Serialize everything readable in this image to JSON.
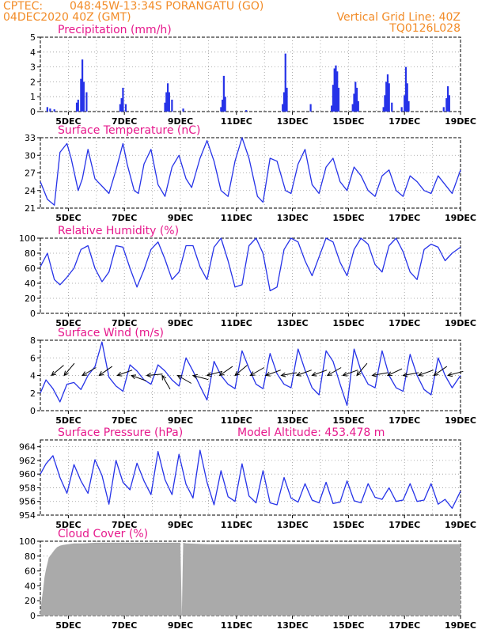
{
  "header": {
    "agency": "CPTEC:",
    "location": "048:45W-13:34S   PORANGATU (GO)",
    "run": "04DEC2020 40Z (GMT)",
    "grid_note": "Vertical Grid Line: 40Z",
    "code": "TQ0126L028"
  },
  "chart_data": [
    {
      "id": "precip",
      "type": "bar",
      "title": "Precipitation  (mm/h)",
      "ylim": [
        0,
        5
      ],
      "yticks": [
        0,
        1,
        2,
        3,
        4,
        5
      ],
      "xlim": [
        0,
        15
      ],
      "color": "#2633e8",
      "x_labels": [
        "5DEC",
        "7DEC",
        "9DEC",
        "11DEC",
        "13DEC",
        "15DEC",
        "17DEC",
        "19DEC"
      ],
      "values": [
        [
          0.25,
          0.3
        ],
        [
          0.35,
          0.2
        ],
        [
          0.5,
          0.15
        ],
        [
          1.3,
          0.6
        ],
        [
          1.35,
          0.8
        ],
        [
          1.45,
          2.2
        ],
        [
          1.5,
          3.5
        ],
        [
          1.55,
          2.0
        ],
        [
          1.65,
          1.3
        ],
        [
          2.85,
          0.5
        ],
        [
          2.9,
          0.9
        ],
        [
          2.95,
          1.6
        ],
        [
          3.05,
          0.5
        ],
        [
          4.45,
          0.6
        ],
        [
          4.5,
          1.3
        ],
        [
          4.55,
          1.9
        ],
        [
          4.6,
          1.3
        ],
        [
          4.7,
          0.8
        ],
        [
          5.1,
          0.2
        ],
        [
          6.45,
          0.3
        ],
        [
          6.5,
          0.8
        ],
        [
          6.55,
          2.4
        ],
        [
          6.6,
          1.0
        ],
        [
          7.35,
          0.1
        ],
        [
          8.65,
          0.5
        ],
        [
          8.7,
          1.3
        ],
        [
          8.75,
          3.9
        ],
        [
          8.8,
          1.6
        ],
        [
          9.65,
          0.5
        ],
        [
          10.4,
          0.4
        ],
        [
          10.45,
          1.8
        ],
        [
          10.5,
          2.9
        ],
        [
          10.55,
          3.1
        ],
        [
          10.6,
          2.7
        ],
        [
          10.65,
          1.6
        ],
        [
          11.15,
          0.5
        ],
        [
          11.2,
          1.2
        ],
        [
          11.25,
          2.0
        ],
        [
          11.3,
          1.6
        ],
        [
          11.35,
          0.7
        ],
        [
          12.25,
          0.3
        ],
        [
          12.3,
          1.1
        ],
        [
          12.35,
          2.0
        ],
        [
          12.4,
          2.5
        ],
        [
          12.45,
          1.9
        ],
        [
          12.55,
          0.6
        ],
        [
          12.9,
          0.3
        ],
        [
          13.0,
          1.1
        ],
        [
          13.05,
          3.0
        ],
        [
          13.1,
          1.9
        ],
        [
          13.15,
          0.7
        ],
        [
          14.4,
          0.3
        ],
        [
          14.5,
          0.9
        ],
        [
          14.55,
          1.7
        ],
        [
          14.6,
          1.1
        ]
      ]
    },
    {
      "id": "temp",
      "type": "line",
      "title": "Surface Temperature (nC)",
      "ylim": [
        21,
        33
      ],
      "yticks": [
        21,
        24,
        27,
        30,
        33
      ],
      "xlim": [
        0,
        15
      ],
      "color": "#2633e8",
      "x_labels": [
        "5DEC",
        "7DEC",
        "9DEC",
        "11DEC",
        "13DEC",
        "15DEC",
        "17DEC",
        "19DEC"
      ],
      "x": [
        0,
        0.25,
        0.5,
        0.7,
        0.95,
        1.1,
        1.35,
        1.5,
        1.7,
        1.95,
        2.25,
        2.45,
        2.7,
        2.95,
        3.1,
        3.35,
        3.5,
        3.7,
        3.95,
        4.2,
        4.45,
        4.7,
        4.95,
        5.2,
        5.4,
        5.7,
        5.95,
        6.2,
        6.45,
        6.7,
        6.95,
        7.2,
        7.45,
        7.75,
        7.95,
        8.2,
        8.45,
        8.75,
        8.95,
        9.2,
        9.45,
        9.7,
        9.95,
        10.2,
        10.45,
        10.7,
        10.95,
        11.2,
        11.45,
        11.7,
        11.95,
        12.2,
        12.45,
        12.7,
        12.95,
        13.2,
        13.45,
        13.7,
        13.95,
        14.2,
        14.45,
        14.7,
        15
      ],
      "values": [
        25.5,
        22.5,
        21.5,
        30.5,
        32.0,
        29.5,
        24.0,
        26.0,
        31.0,
        26.0,
        24.5,
        23.5,
        27.5,
        32.0,
        28.5,
        24.0,
        23.5,
        28.5,
        31.0,
        25.0,
        23.0,
        28.0,
        30.0,
        26.0,
        24.5,
        29.5,
        32.5,
        29.0,
        24.0,
        23.0,
        29.0,
        33.0,
        29.5,
        23.0,
        22.0,
        29.5,
        29.0,
        24.0,
        23.5,
        28.5,
        31.0,
        25.0,
        23.5,
        28.0,
        29.5,
        25.5,
        24.0,
        28.0,
        26.5,
        24.0,
        23.0,
        26.5,
        27.5,
        24.0,
        23.0,
        26.5,
        25.5,
        24.0,
        23.5,
        26.5,
        25.0,
        23.5,
        27.5
      ]
    },
    {
      "id": "rh",
      "type": "line",
      "title": "Relative Humidity  (%)",
      "ylim": [
        0,
        100
      ],
      "yticks": [
        0,
        20,
        40,
        60,
        80,
        100
      ],
      "xlim": [
        0,
        15
      ],
      "color": "#2633e8",
      "x_labels": [
        "5DEC",
        "7DEC",
        "9DEC",
        "11DEC",
        "13DEC",
        "15DEC",
        "17DEC",
        "19DEC"
      ],
      "x": [
        0,
        0.25,
        0.5,
        0.7,
        0.95,
        1.2,
        1.45,
        1.7,
        1.95,
        2.2,
        2.45,
        2.7,
        2.95,
        3.2,
        3.45,
        3.7,
        3.95,
        4.2,
        4.45,
        4.7,
        4.95,
        5.2,
        5.45,
        5.7,
        5.95,
        6.2,
        6.45,
        6.7,
        6.95,
        7.2,
        7.45,
        7.7,
        7.95,
        8.2,
        8.45,
        8.7,
        8.95,
        9.2,
        9.45,
        9.7,
        9.95,
        10.2,
        10.45,
        10.7,
        10.95,
        11.2,
        11.45,
        11.7,
        11.95,
        12.2,
        12.45,
        12.7,
        12.95,
        13.2,
        13.45,
        13.7,
        13.95,
        14.2,
        14.45,
        14.7,
        15
      ],
      "values": [
        62,
        80,
        45,
        38,
        48,
        60,
        85,
        90,
        60,
        42,
        55,
        90,
        88,
        60,
        35,
        58,
        85,
        95,
        72,
        45,
        55,
        90,
        90,
        62,
        45,
        88,
        100,
        70,
        35,
        38,
        90,
        100,
        80,
        30,
        35,
        85,
        100,
        95,
        70,
        50,
        75,
        100,
        95,
        68,
        50,
        85,
        100,
        92,
        65,
        55,
        90,
        100,
        82,
        55,
        45,
        85,
        92,
        88,
        70,
        80,
        88
      ]
    },
    {
      "id": "wind",
      "type": "line",
      "title": "Surface Wind  (m/s)",
      "ylim": [
        0,
        8
      ],
      "yticks": [
        0,
        2,
        4,
        6,
        8
      ],
      "xlim": [
        0,
        15
      ],
      "color": "#2633e8",
      "x_labels": [
        "5DEC",
        "7DEC",
        "9DEC",
        "11DEC",
        "13DEC",
        "15DEC",
        "17DEC",
        "19DEC"
      ],
      "x": [
        0,
        0.2,
        0.45,
        0.7,
        0.95,
        1.2,
        1.45,
        1.7,
        1.95,
        2.2,
        2.45,
        2.7,
        2.95,
        3.2,
        3.45,
        3.7,
        3.95,
        4.2,
        4.45,
        4.7,
        4.95,
        5.2,
        5.45,
        5.7,
        5.95,
        6.2,
        6.45,
        6.7,
        6.95,
        7.2,
        7.45,
        7.7,
        7.95,
        8.2,
        8.45,
        8.7,
        8.95,
        9.2,
        9.45,
        9.7,
        9.95,
        10.2,
        10.45,
        10.7,
        10.95,
        11.2,
        11.45,
        11.7,
        11.95,
        12.2,
        12.45,
        12.7,
        12.95,
        13.2,
        13.45,
        13.7,
        13.95,
        14.2,
        14.45,
        14.7,
        15
      ],
      "values": [
        2.0,
        3.5,
        2.5,
        1.0,
        3.0,
        3.2,
        2.4,
        4.0,
        5.0,
        7.8,
        3.8,
        2.8,
        2.2,
        5.2,
        4.5,
        3.5,
        3.0,
        5.2,
        4.5,
        3.5,
        2.8,
        6.0,
        4.5,
        2.8,
        1.2,
        5.6,
        4.0,
        3.0,
        2.5,
        6.8,
        4.8,
        3.0,
        2.5,
        6.5,
        4.2,
        3.0,
        2.6,
        7.0,
        4.6,
        2.6,
        1.8,
        6.8,
        5.6,
        3.0,
        0.6,
        7.0,
        4.5,
        3.0,
        2.6,
        6.8,
        4.0,
        2.6,
        2.2,
        6.4,
        4.0,
        2.4,
        1.8,
        6.0,
        4.0,
        2.6,
        4.0
      ],
      "arrows_x": [
        0.4,
        0.85,
        1.5,
        2.1,
        2.75,
        3.25,
        3.8,
        4.35,
        4.9,
        5.45,
        5.95,
        6.4,
        6.95,
        7.5,
        8.05,
        8.6,
        9.15,
        9.7,
        10.25,
        10.8,
        11.3,
        11.85,
        12.4,
        12.95,
        13.5,
        14.05,
        14.55
      ],
      "arrows_dir": [
        220,
        230,
        210,
        215,
        200,
        160,
        185,
        120,
        150,
        165,
        195,
        215,
        220,
        210,
        200,
        190,
        200,
        200,
        210,
        200,
        230,
        190,
        205,
        190,
        200,
        215,
        195
      ]
    },
    {
      "id": "pressure",
      "type": "line",
      "title": "Surface Pressure  (hPa)",
      "note": "Model Altitude: 453.478  m",
      "ylim": [
        954,
        965
      ],
      "yticks": [
        954,
        956,
        958,
        960,
        962,
        964
      ],
      "xlim": [
        0,
        15
      ],
      "color": "#2633e8",
      "x_labels": [
        "5DEC",
        "7DEC",
        "9DEC",
        "11DEC",
        "13DEC",
        "15DEC",
        "17DEC",
        "19DEC"
      ],
      "x": [
        0,
        0.2,
        0.45,
        0.7,
        0.95,
        1.2,
        1.45,
        1.7,
        1.95,
        2.2,
        2.45,
        2.7,
        2.95,
        3.2,
        3.45,
        3.7,
        3.95,
        4.2,
        4.45,
        4.7,
        4.95,
        5.2,
        5.45,
        5.7,
        5.95,
        6.2,
        6.45,
        6.7,
        6.95,
        7.2,
        7.45,
        7.7,
        7.95,
        8.2,
        8.45,
        8.7,
        8.95,
        9.2,
        9.45,
        9.7,
        9.95,
        10.2,
        10.45,
        10.7,
        10.95,
        11.2,
        11.45,
        11.7,
        11.95,
        12.2,
        12.45,
        12.7,
        12.95,
        13.2,
        13.45,
        13.7,
        13.95,
        14.2,
        14.45,
        14.7,
        15
      ],
      "values": [
        960.0,
        961.5,
        962.7,
        959.5,
        957.2,
        961.4,
        959.0,
        957.2,
        962.1,
        959.8,
        955.6,
        962.0,
        958.8,
        957.7,
        961.6,
        959.0,
        957.0,
        963.3,
        959.2,
        957.0,
        962.9,
        958.5,
        956.5,
        963.5,
        958.8,
        955.5,
        960.5,
        956.7,
        956.0,
        961.5,
        956.8,
        955.8,
        960.5,
        955.8,
        955.5,
        959.5,
        956.5,
        955.9,
        958.6,
        956.2,
        955.8,
        958.8,
        955.7,
        955.9,
        959.0,
        956.1,
        955.8,
        958.6,
        956.6,
        956.3,
        958.0,
        956.0,
        956.2,
        958.6,
        956.0,
        956.2,
        958.6,
        955.6,
        956.3,
        955.0,
        957.5
      ]
    },
    {
      "id": "cloud",
      "type": "area",
      "title": "Cloud Cover  (%)",
      "ylim": [
        0,
        100
      ],
      "yticks": [
        0,
        20,
        40,
        60,
        80,
        100
      ],
      "xlim": [
        0,
        15
      ],
      "color": "#aaaaaa",
      "x_labels": [
        "5DEC",
        "7DEC",
        "9DEC",
        "11DEC",
        "13DEC",
        "15DEC",
        "17DEC",
        "19DEC"
      ],
      "x": [
        0,
        0.05,
        0.1,
        0.15,
        0.2,
        0.25,
        0.3,
        0.4,
        0.5,
        0.6,
        0.7,
        0.8,
        1.0,
        1.2,
        1.5,
        2.0,
        2.5,
        3.0,
        4.0,
        5.0,
        5.05,
        5.1,
        5.2,
        6.0,
        7.0,
        8.0,
        9.0,
        10.0,
        11.0,
        12.0,
        13.0,
        14.0,
        15.0
      ],
      "values": [
        5,
        22,
        35,
        52,
        62,
        70,
        78,
        83,
        88,
        92,
        94,
        95,
        96,
        97,
        97,
        98,
        98,
        98,
        98,
        98,
        0,
        98,
        97,
        96,
        96,
        96,
        96,
        96,
        96,
        96,
        96,
        96,
        96
      ]
    }
  ]
}
